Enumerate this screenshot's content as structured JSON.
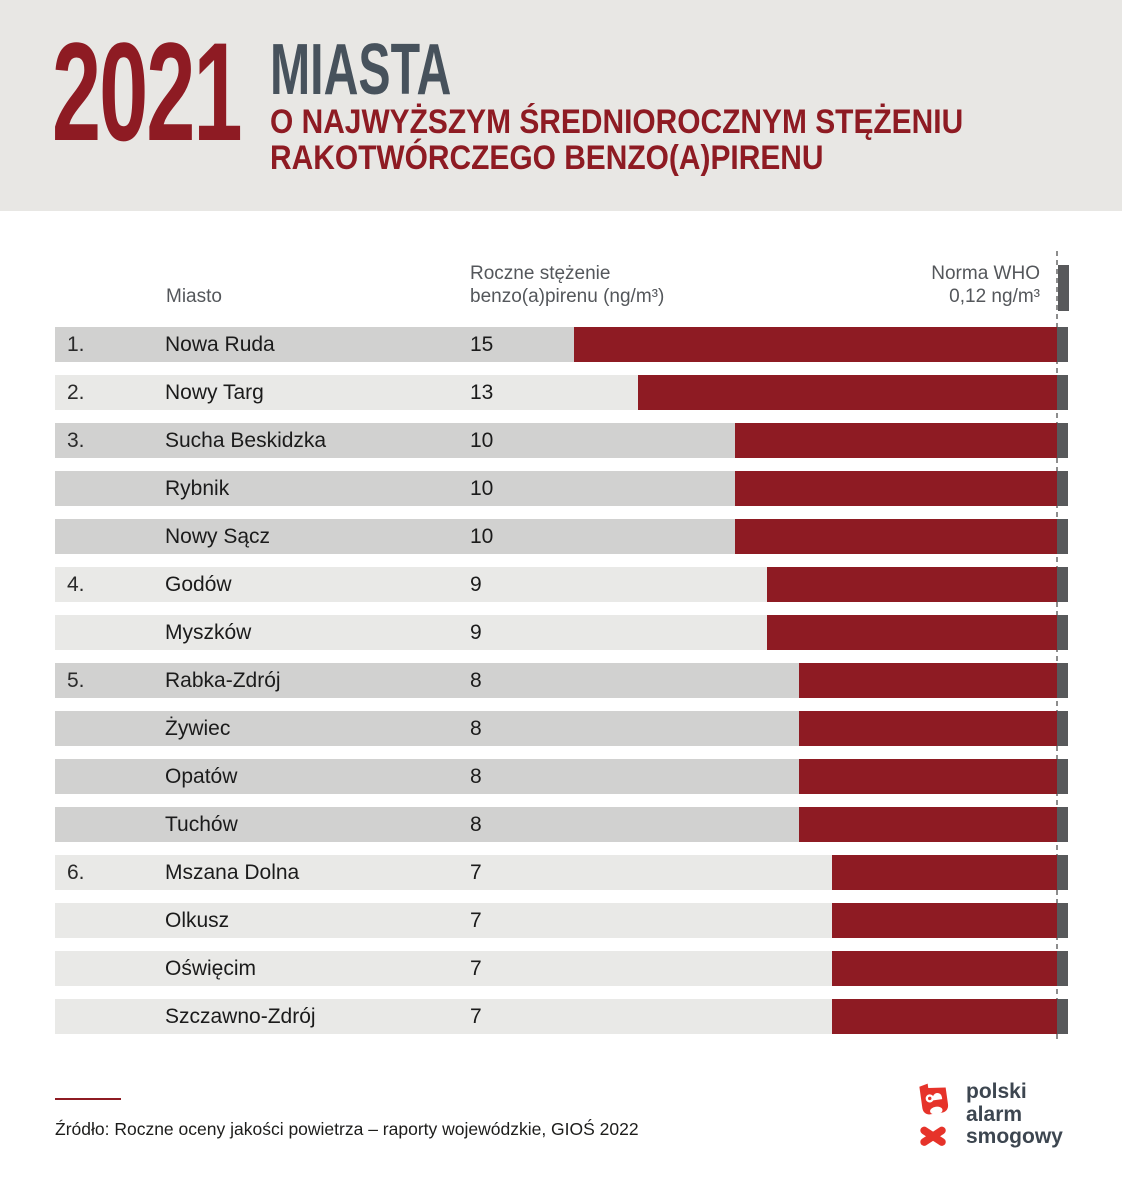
{
  "header": {
    "year": "2021",
    "title": "MIASTA",
    "subtitle_line1": "O NAJWYŻSZYM ŚREDNIOROCZNYM STĘŻENIU",
    "subtitle_line2": "RAKOTWÓRCZEGO BENZO(A)PIRENU"
  },
  "table_headers": {
    "city": "Miasto",
    "value_line1": "Roczne stężenie",
    "value_line2": "benzo(a)pirenu (ng/m³)",
    "norm_line1": "Norma WHO",
    "norm_line2": "0,12 ng/m³"
  },
  "chart_data": {
    "type": "bar",
    "orientation": "horizontal",
    "title": "2021 MIASTA o najwyższym średniorocznym stężeniu rakotwórczego benzo(a)pirenu",
    "xlabel": "Roczne stężenie benzo(a)pirenu (ng/m³)",
    "ylabel": "Miasto",
    "unit": "ng/m³",
    "categories": [
      "Nowa Ruda",
      "Nowy Targ",
      "Sucha Beskidzka",
      "Rybnik",
      "Nowy Sącz",
      "Godów",
      "Myszków",
      "Rabka-Zdrój",
      "Żywiec",
      "Opatów",
      "Tuchów",
      "Mszana Dolna",
      "Olkusz",
      "Oświęcim",
      "Szczawno-Zdrój"
    ],
    "values": [
      15,
      13,
      10,
      10,
      10,
      9,
      9,
      8,
      8,
      8,
      8,
      7,
      7,
      7,
      7
    ],
    "ranks": [
      "1.",
      "2.",
      "3.",
      "",
      "",
      "4.",
      "",
      "5.",
      "",
      "",
      "",
      "6.",
      "",
      "",
      ""
    ],
    "row_shades": [
      "dark",
      "light",
      "dark",
      "dark",
      "dark",
      "light",
      "light",
      "dark",
      "dark",
      "dark",
      "dark",
      "light",
      "light",
      "light",
      "light"
    ],
    "xlim": [
      0,
      15
    ],
    "grid": false,
    "legend": false,
    "reference_line": {
      "label": "Norma WHO",
      "value": 0.12,
      "value_label": "0,12 ng/m³"
    }
  },
  "footer": {
    "source": "Źródło: Roczne oceny jakości powietrza – raporty wojewódzkie, GIOŚ 2022",
    "logo_line1": "polski",
    "logo_line2": "alarm",
    "logo_line3": "smogowy"
  },
  "colors": {
    "bar_maroon": "#8e1b23",
    "title_slate": "#47525c",
    "header_band": "#e8e7e4",
    "row_dark": "#d1d1d0",
    "row_light": "#e9e9e7",
    "who_marker": "#58595b",
    "dash_line": "#8d8d8d",
    "logo_red": "#e6332a",
    "logo_text": "#3d4650"
  }
}
